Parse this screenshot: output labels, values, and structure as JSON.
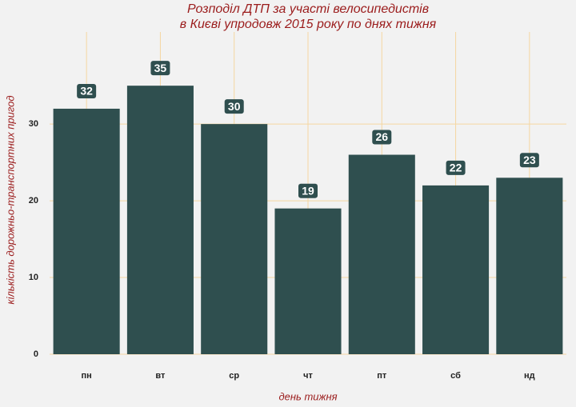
{
  "chart_data": {
    "type": "bar",
    "title": [
      "Розподіл ДТП за участі велосипедистів",
      "в Києві упродовж 2015 року по днях тижня"
    ],
    "x_label": "день тижня",
    "y_label": "кількість дорожньо-транспортних пригод",
    "categories": [
      "пн",
      "вт",
      "ср",
      "чт",
      "пт",
      "сб",
      "нд"
    ],
    "values": [
      32,
      35,
      30,
      19,
      26,
      22,
      23
    ],
    "color": "#2f4f4f",
    "ylim": [
      0,
      42
    ],
    "yticks": [
      0,
      10,
      20,
      30
    ],
    "grid": true
  }
}
